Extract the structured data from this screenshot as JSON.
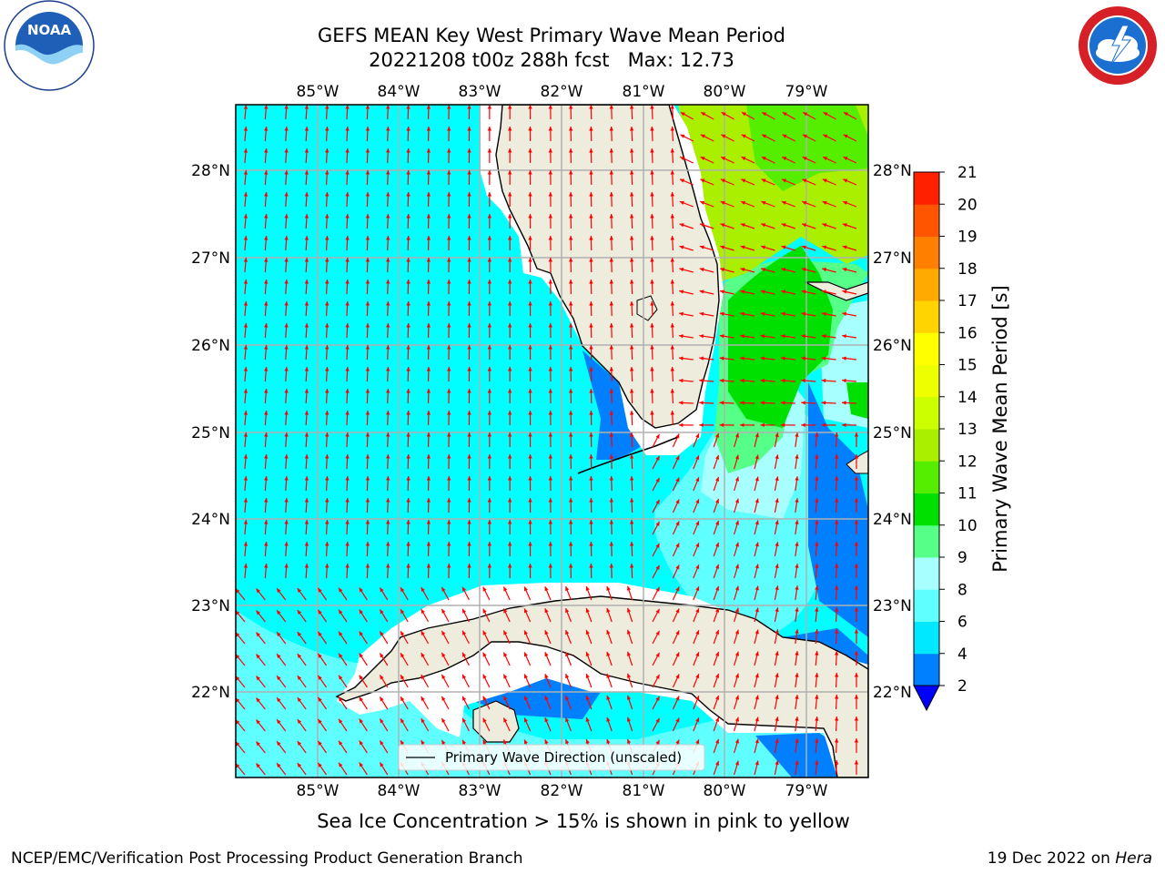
{
  "header": {
    "title_line1": "GEFS MEAN Key West Primary Wave Mean Period",
    "title_line2": "20221208 t00z 288h fcst   Max: 12.73"
  },
  "logos": {
    "noaa_text": "NOAA",
    "noaa_ring_text": "NATIONAL OCEANIC AND ATMOSPHERIC ADMINISTRATION",
    "noaa_bottom_text": "U.S. DEPARTMENT OF COMMERCE",
    "nws_ring_text": "NATIONAL WEATHER SERVICE"
  },
  "map": {
    "lon_labels": [
      "85°W",
      "84°W",
      "83°W",
      "82°W",
      "81°W",
      "80°W",
      "79°W"
    ],
    "lat_labels": [
      "28°N",
      "27°N",
      "26°N",
      "25°N",
      "24°N",
      "23°N",
      "22°N"
    ],
    "legend_label": "Primary Wave Direction (unscaled)",
    "ocean_color": "#00ffff",
    "land_color": "#eeecdd",
    "arrow_color": "#ff0000"
  },
  "colorbar": {
    "label": "Primary Wave Mean Period [s]",
    "ticks": [
      "2",
      "4",
      "6",
      "8",
      "9",
      "10",
      "11",
      "12",
      "13",
      "14",
      "15",
      "16",
      "17",
      "18",
      "19",
      "20",
      "21"
    ],
    "colors": [
      "#0080ff",
      "#00e8ff",
      "#60ffff",
      "#a8ffff",
      "#55ff88",
      "#00e000",
      "#55ee00",
      "#aaee00",
      "#ccff00",
      "#eeff00",
      "#ffff00",
      "#ffd400",
      "#ffaa00",
      "#ff8000",
      "#ff5500",
      "#ff2000"
    ],
    "under_color": "#0000ff"
  },
  "footer": {
    "sea_ice_note": "Sea Ice Concentration > 15% is shown in pink to yellow",
    "credit": "NCEP/EMC/Verification Post Processing Product Generation Branch",
    "date_text": "19 Dec 2022 on ",
    "machine": "Hera"
  }
}
